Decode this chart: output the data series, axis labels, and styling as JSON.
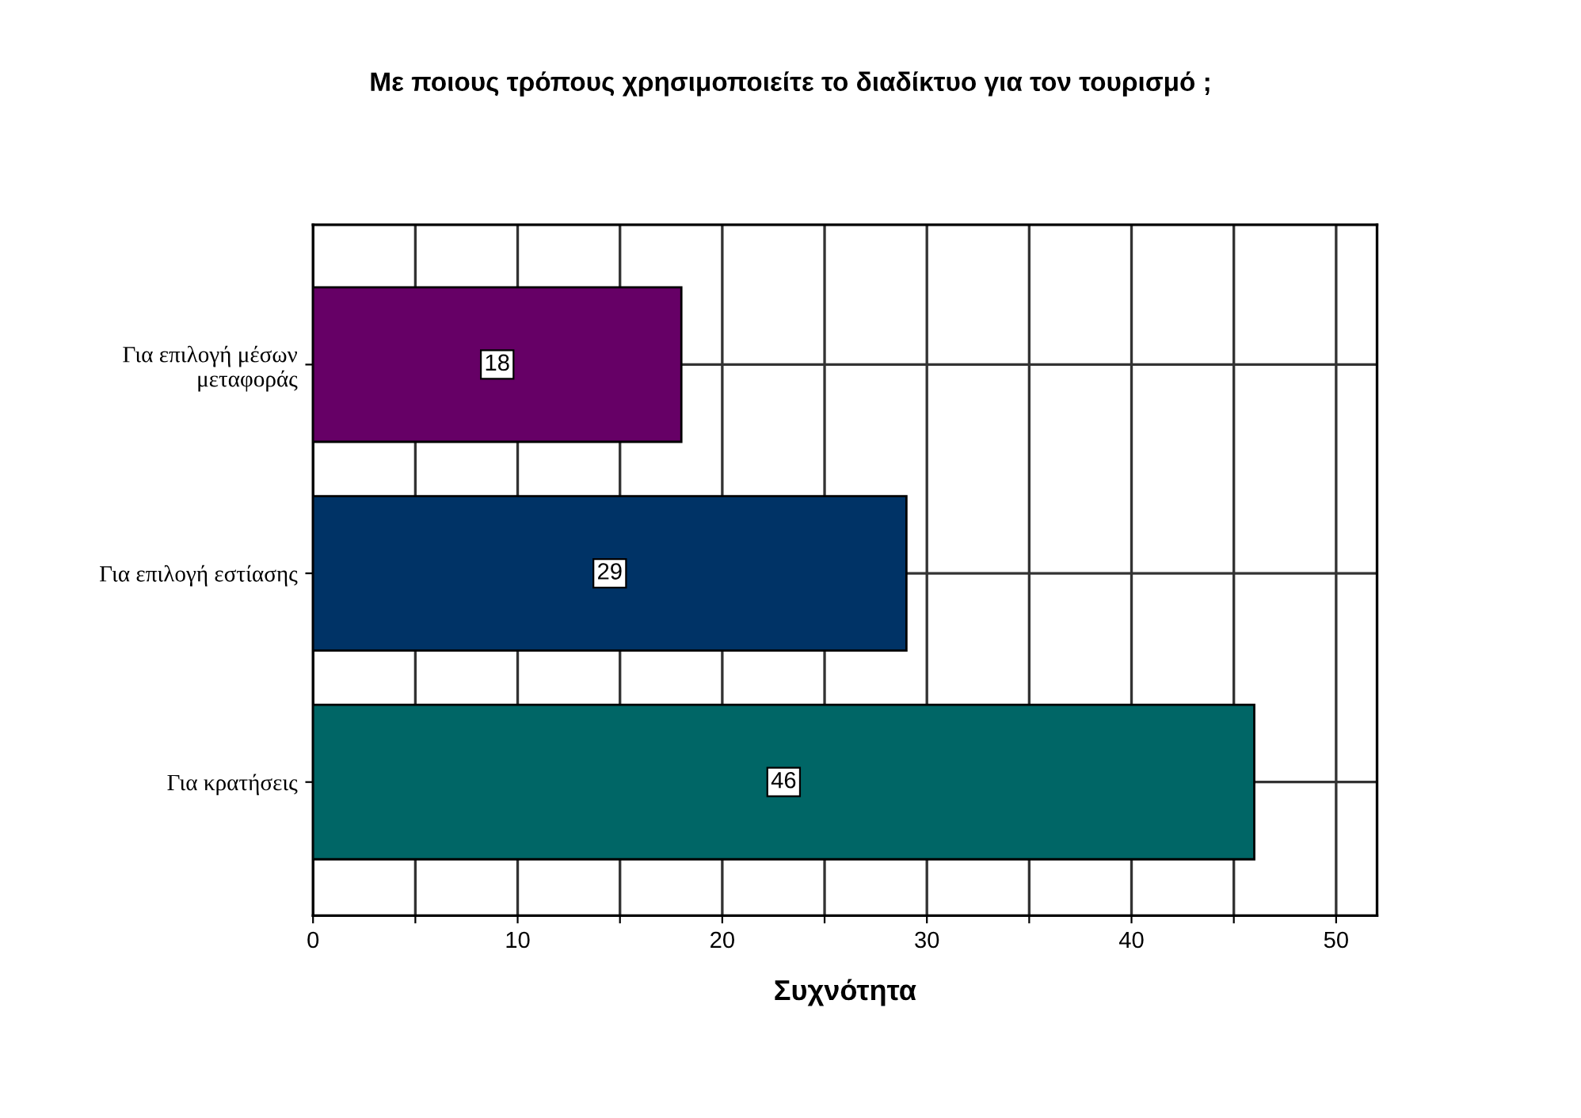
{
  "chart_data": {
    "type": "bar",
    "orientation": "horizontal",
    "title": "Με ποιους τρόπους χρησιμοποιείτε το διαδίκτυο για τον τουρισμό ;",
    "xlabel": "Συχνότητα",
    "categories": [
      "Για επιλογή μέσων\nμεταφοράς",
      "Για επιλογή εστίασης",
      "Για κρατήσεις"
    ],
    "values": [
      18,
      29,
      46
    ],
    "colors": [
      "#660066",
      "#003366",
      "#006666"
    ],
    "xlim": [
      0,
      52
    ],
    "xticks": [
      0,
      {
        "value": 5,
        "label": null
      },
      10,
      {
        "value": 15,
        "label": null
      },
      20,
      {
        "value": 25,
        "label": null
      },
      30,
      {
        "value": 35,
        "label": null
      },
      40,
      {
        "value": 45,
        "label": null
      },
      50
    ],
    "grid": true,
    "data_labels": true
  }
}
